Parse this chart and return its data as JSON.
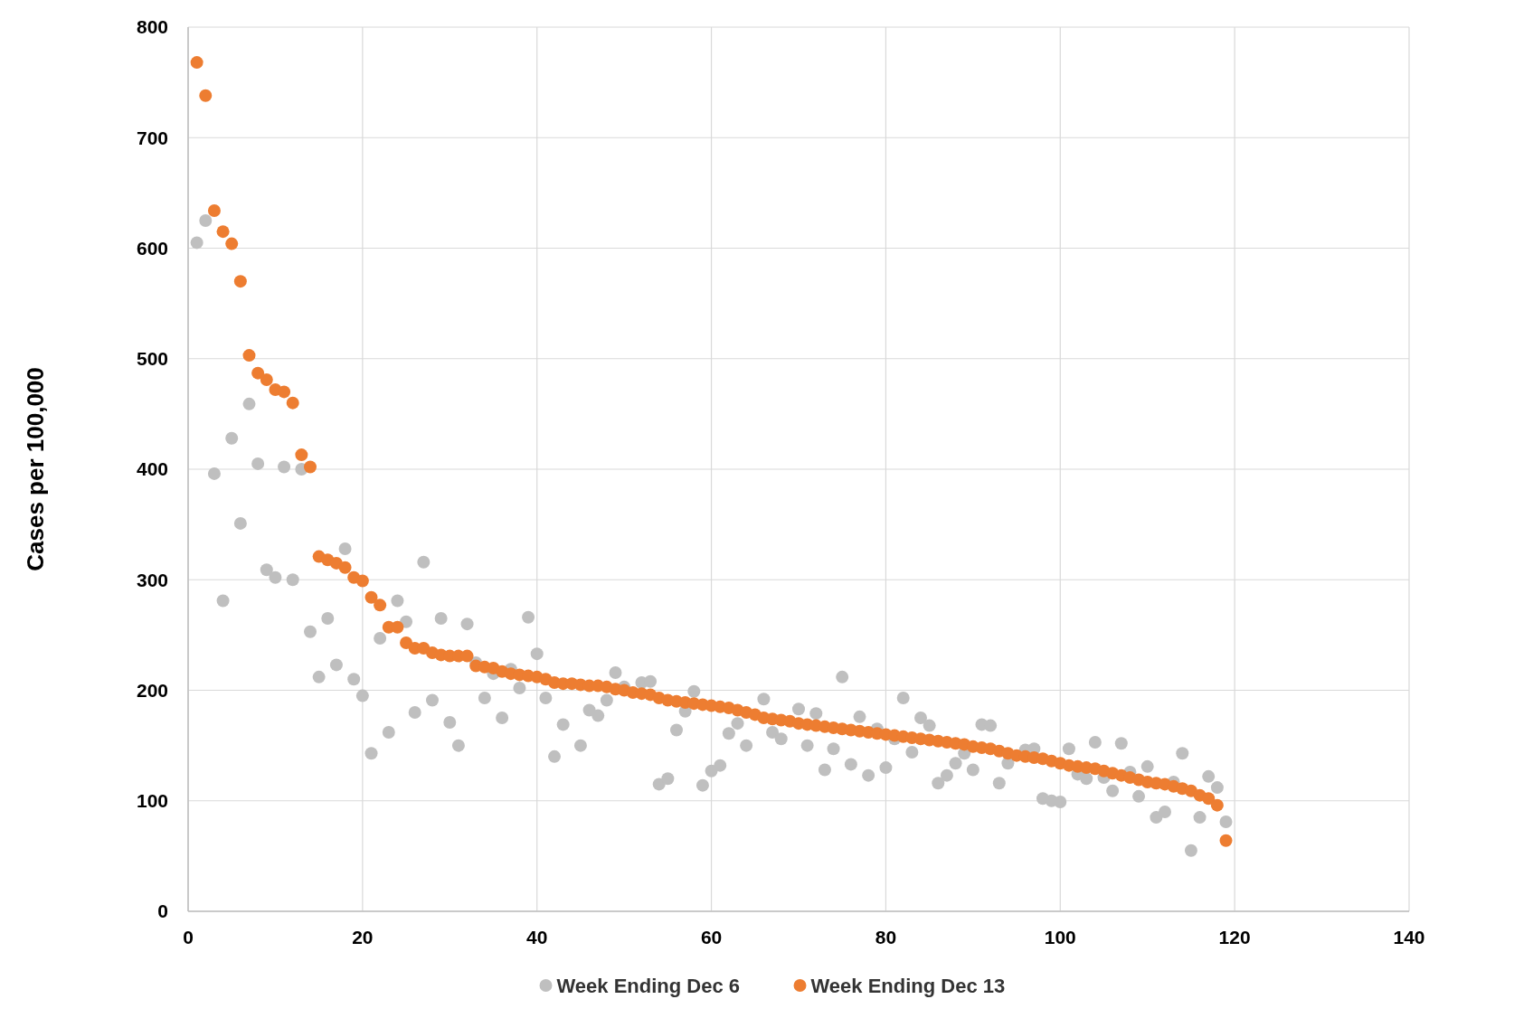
{
  "chart_data": {
    "type": "scatter",
    "ylabel": "Cases per 100,000",
    "x": [
      1,
      2,
      3,
      4,
      5,
      6,
      7,
      8,
      9,
      10,
      11,
      12,
      13,
      14,
      15,
      16,
      17,
      18,
      19,
      20,
      21,
      22,
      23,
      24,
      25,
      26,
      27,
      28,
      29,
      30,
      31,
      32,
      33,
      34,
      35,
      36,
      37,
      38,
      39,
      40,
      41,
      42,
      43,
      44,
      45,
      46,
      47,
      48,
      49,
      50,
      51,
      52,
      53,
      54,
      55,
      56,
      57,
      58,
      59,
      60,
      61,
      62,
      63,
      64,
      65,
      66,
      67,
      68,
      69,
      70,
      71,
      72,
      73,
      74,
      75,
      76,
      77,
      78,
      79,
      80,
      81,
      82,
      83,
      84,
      85,
      86,
      87,
      88,
      89,
      90,
      91,
      92,
      93,
      94,
      95,
      96,
      97,
      98,
      99,
      100,
      101,
      102,
      103,
      104,
      105,
      106,
      107,
      108,
      109,
      110,
      111,
      112,
      113,
      114,
      115,
      116,
      117,
      118,
      119
    ],
    "series": [
      {
        "name": "Week Ending Dec 6",
        "color": "#bfbfbf",
        "values": [
          605,
          625,
          396,
          281,
          428,
          351,
          459,
          405,
          309,
          302,
          402,
          300,
          400,
          253,
          212,
          265,
          223,
          328,
          210,
          195,
          143,
          247,
          162,
          281,
          262,
          180,
          316,
          191,
          265,
          171,
          150,
          260,
          225,
          193,
          215,
          175,
          219,
          202,
          266,
          233,
          193,
          140,
          169,
          null,
          150,
          182,
          177,
          191,
          216,
          203,
          null,
          207,
          208,
          115,
          120,
          164,
          181,
          199,
          114,
          127,
          132,
          161,
          170,
          150,
          null,
          192,
          162,
          156,
          null,
          183,
          150,
          179,
          128,
          147,
          212,
          133,
          176,
          123,
          165,
          130,
          156,
          193,
          144,
          175,
          168,
          116,
          123,
          134,
          143,
          128,
          169,
          168,
          116,
          134,
          null,
          146,
          147,
          102,
          100,
          99,
          147,
          124,
          120,
          153,
          121,
          109,
          152,
          126,
          104,
          131,
          85,
          90,
          117,
          143,
          55,
          85,
          122,
          112,
          81
        ]
      },
      {
        "name": "Week Ending Dec 13",
        "color": "#ed7d31",
        "values": [
          768,
          738,
          634,
          615,
          604,
          570,
          503,
          487,
          481,
          472,
          470,
          460,
          413,
          402,
          321,
          318,
          315,
          311,
          302,
          299,
          284,
          277,
          257,
          257,
          243,
          238,
          238,
          234,
          232,
          231,
          231,
          231,
          222,
          221,
          220,
          217,
          215,
          214,
          213,
          212,
          210,
          207,
          206,
          206,
          205,
          204,
          204,
          203,
          201,
          200,
          198,
          197,
          196,
          193,
          191,
          190,
          189,
          188,
          187,
          186,
          185,
          184,
          182,
          180,
          178,
          175,
          174,
          173,
          172,
          170,
          169,
          168,
          167,
          166,
          165,
          164,
          163,
          162,
          161,
          160,
          159,
          158,
          157,
          156,
          155,
          154,
          153,
          152,
          151,
          149,
          148,
          147,
          145,
          143,
          141,
          140,
          139,
          138,
          136,
          134,
          132,
          131,
          130,
          129,
          127,
          125,
          123,
          121,
          119,
          117,
          116,
          115,
          113,
          111,
          109,
          105,
          102,
          96,
          64
        ]
      }
    ],
    "xlim": [
      0,
      140
    ],
    "xticks": [
      0,
      20,
      40,
      60,
      80,
      100,
      120,
      140
    ],
    "ylim": [
      0,
      800
    ],
    "yticks": [
      0,
      100,
      200,
      300,
      400,
      500,
      600,
      700,
      800
    ],
    "grid": true,
    "legend": "bottom",
    "marker": "circle"
  }
}
